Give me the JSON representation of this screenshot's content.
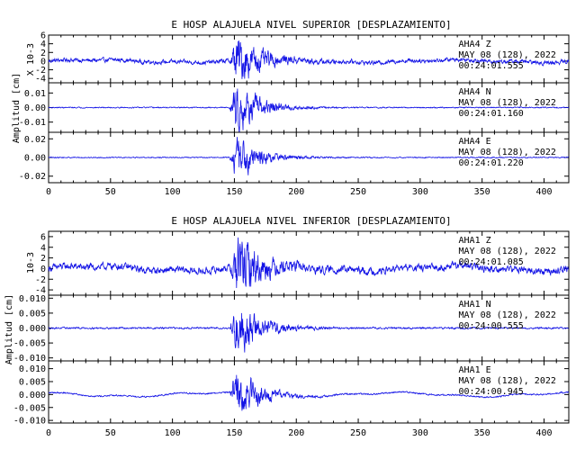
{
  "chart_data": [
    {
      "type": "line",
      "title": "E HOSP ALAJUELA NIVEL SUPERIOR [DESPLAZAMIENTO]",
      "ylabel": "Amplitud [cm]",
      "xlim": [
        0,
        420
      ],
      "xticks": [
        0,
        50,
        100,
        150,
        200,
        250,
        300,
        350,
        400
      ],
      "traces": [
        {
          "ylim": [
            -5,
            6
          ],
          "yticks": [
            -4,
            -2,
            0,
            2,
            4,
            6
          ],
          "yticklabels": [
            "-4",
            "-2",
            "0",
            "2",
            "4",
            "6"
          ],
          "scale_label": "X 10-3",
          "station": "AHA4",
          "component": "Z",
          "date": "MAY 08 (128), 2022",
          "time": "00:24:01.555",
          "arrival": 150,
          "peak": 5.5,
          "noise": 0.5,
          "drift": 0.4
        },
        {
          "ylim": [
            -0.017,
            0.017
          ],
          "yticks": [
            -0.01,
            0.0,
            0.01
          ],
          "yticklabels": [
            "-0.01",
            "0.00",
            "0.01"
          ],
          "scale_label": "",
          "station": "AHA4",
          "component": "N",
          "date": "MAY 08 (128), 2022",
          "time": "00:24:01.160",
          "arrival": 150,
          "peak": 0.016,
          "noise": 0.0004,
          "drift": 0.0
        },
        {
          "ylim": [
            -0.027,
            0.027
          ],
          "yticks": [
            -0.02,
            0.0,
            0.02
          ],
          "yticklabels": [
            "-0.02",
            "0.00",
            "0.02"
          ],
          "scale_label": "",
          "station": "AHA4",
          "component": "E",
          "date": "MAY 08 (128), 2022",
          "time": "00:24:01.220",
          "arrival": 150,
          "peak": 0.022,
          "noise": 0.0006,
          "drift": 0.0
        }
      ]
    },
    {
      "type": "line",
      "title": "E HOSP ALAJUELA NIVEL INFERIOR [DESPLAZAMIENTO]",
      "ylabel": "Amplitud [cm]",
      "xlim": [
        0,
        420
      ],
      "xticks": [
        0,
        50,
        100,
        150,
        200,
        250,
        300,
        350,
        400
      ],
      "traces": [
        {
          "ylim": [
            -5,
            7
          ],
          "yticks": [
            -4,
            -2,
            0,
            2,
            4,
            6
          ],
          "yticklabels": [
            "-4",
            "-2",
            "0",
            "2",
            "4",
            "6"
          ],
          "scale_label": "10-3",
          "station": "AHA1",
          "component": "Z",
          "date": "MAY 08 (128), 2022",
          "time": "00:24:01.085",
          "arrival": 150,
          "peak": 5.8,
          "noise": 0.7,
          "drift": 0.6
        },
        {
          "ylim": [
            -0.011,
            0.011
          ],
          "yticks": [
            -0.01,
            -0.005,
            0.0,
            0.005,
            0.01
          ],
          "yticklabels": [
            "-0.010",
            "-0.005",
            "0.000",
            "0.005",
            "0.010"
          ],
          "scale_label": "",
          "station": "AHA1",
          "component": "N",
          "date": "MAY 08 (128), 2022",
          "time": "00:24:00.555",
          "arrival": 150,
          "peak": 0.009,
          "noise": 0.0003,
          "drift": 0.0
        },
        {
          "ylim": [
            -0.011,
            0.013
          ],
          "yticks": [
            -0.01,
            -0.005,
            0.0,
            0.005,
            0.01
          ],
          "yticklabels": [
            "-0.010",
            "-0.005",
            "0.000",
            "0.005",
            "0.010"
          ],
          "scale_label": "",
          "station": "AHA1",
          "component": "E",
          "date": "MAY 08 (128), 2022",
          "time": "00:24:00.945",
          "arrival": 150,
          "peak": 0.009,
          "noise": 0.0003,
          "drift": 0.001
        }
      ]
    }
  ]
}
